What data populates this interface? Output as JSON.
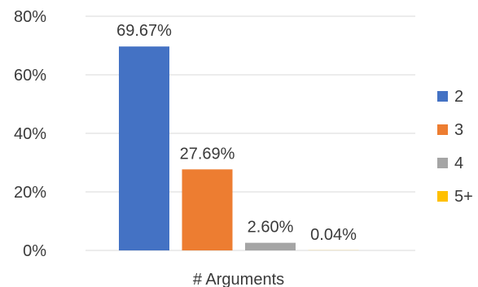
{
  "chart_data": {
    "type": "bar",
    "xlabel": "# Arguments",
    "ylabel": "",
    "ylim": [
      0,
      80
    ],
    "yticks": [
      "0%",
      "20%",
      "40%",
      "60%",
      "80%"
    ],
    "grid": true,
    "legend_position": "right",
    "series": [
      {
        "name": "2",
        "value": 69.67,
        "label": "69.67%",
        "color": "#4472C4"
      },
      {
        "name": "3",
        "value": 27.69,
        "label": "27.69%",
        "color": "#ED7D31"
      },
      {
        "name": "4",
        "value": 2.6,
        "label": "2.60%",
        "color": "#A5A5A5"
      },
      {
        "name": "5+",
        "value": 0.04,
        "label": "0.04%",
        "color": "#FFC000"
      }
    ]
  }
}
